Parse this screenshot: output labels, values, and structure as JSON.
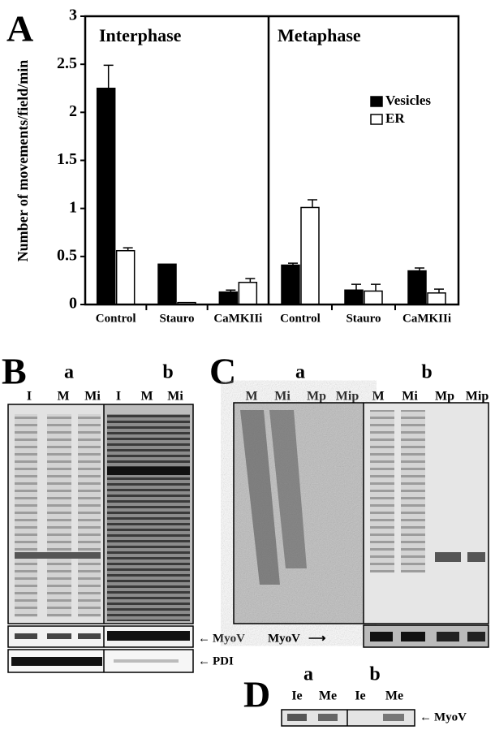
{
  "chart_data": {
    "type": "bar",
    "panel_label": "A",
    "ylabel": "Number of movements/field/min",
    "groups": [
      "Interphase",
      "Metaphase"
    ],
    "categories": [
      "Control",
      "Stauro",
      "CaMKIIi",
      "Control",
      "Stauro",
      "CaMKIIi"
    ],
    "series": [
      {
        "name": "Vesicles",
        "color": "#000000",
        "values": [
          2.25,
          0.42,
          0.13,
          0.41,
          0.15,
          0.35
        ],
        "errors": [
          0.24,
          0,
          0.02,
          0.02,
          0.06,
          0.03
        ]
      },
      {
        "name": "ER",
        "color": "#ffffff",
        "values": [
          0.56,
          0.02,
          0.23,
          1.01,
          0.14,
          0.12
        ],
        "errors": [
          0.03,
          0,
          0.04,
          0.08,
          0.07,
          0.04
        ]
      }
    ],
    "ylim": [
      0,
      3
    ],
    "yticks": [
      0,
      0.5,
      1,
      1.5,
      2,
      2.5,
      3
    ],
    "legend": "upper right"
  },
  "panels": {
    "B": {
      "label": "B",
      "sub_a": "a",
      "sub_b": "b",
      "lanes": [
        "I",
        "M",
        "Mi",
        "I",
        "M",
        "Mi"
      ],
      "blot1": "MyoV",
      "blot2": "PDI"
    },
    "C": {
      "label": "C",
      "sub_a": "a",
      "sub_b": "b",
      "lanes": [
        "M",
        "Mi",
        "Mp",
        "Mip",
        "M",
        "Mi",
        "Mp",
        "Mip"
      ],
      "blot": "MyoV"
    },
    "D": {
      "label": "D",
      "sub_a": "a",
      "sub_b": "b",
      "lanes": [
        "Ie",
        "Me",
        "Ie",
        "Me"
      ],
      "blot": "MyoV"
    }
  }
}
